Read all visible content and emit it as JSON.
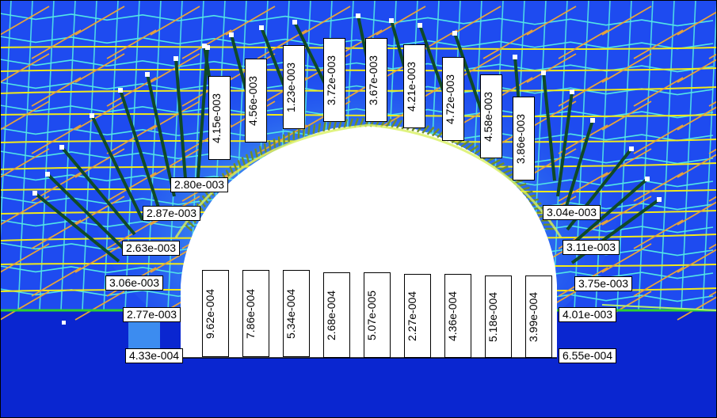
{
  "colors": {
    "deep_blue": "#0a26d0",
    "mid_blue": "#1e4bf0",
    "light_blue": "#3c8cf0",
    "cyan_contour": "#52e6e6",
    "yellow_contour": "#f2ea1a",
    "orange_contour": "#e8a33a",
    "green_line": "#2fd12f",
    "dark_green_leader": "#0f4a28",
    "label_background": "#ffffff",
    "label_border": "#000000"
  },
  "crown_labels": [
    "4.15e-003",
    "4.56e-003",
    "1.23e-003",
    "3.72e-003",
    "3.67e-003",
    "4.21e-003",
    "4.72e-003",
    "4.58e-003",
    "3.86e-003"
  ],
  "left_labels": [
    "2.80e-003",
    "2.87e-003",
    "2.63e-003",
    "3.06e-003",
    "2.77e-003",
    "4.33e-004"
  ],
  "right_labels": [
    "3.04e-003",
    "3.11e-003",
    "3.75e-003",
    "4.01e-003",
    "6.55e-004"
  ],
  "floor_labels": [
    "9.62e-004",
    "7.86e-004",
    "5.34e-004",
    "2.68e-004",
    "5.07e-005",
    "2.27e-004",
    "4.36e-004",
    "5.18e-004",
    "3.99e-004"
  ]
}
